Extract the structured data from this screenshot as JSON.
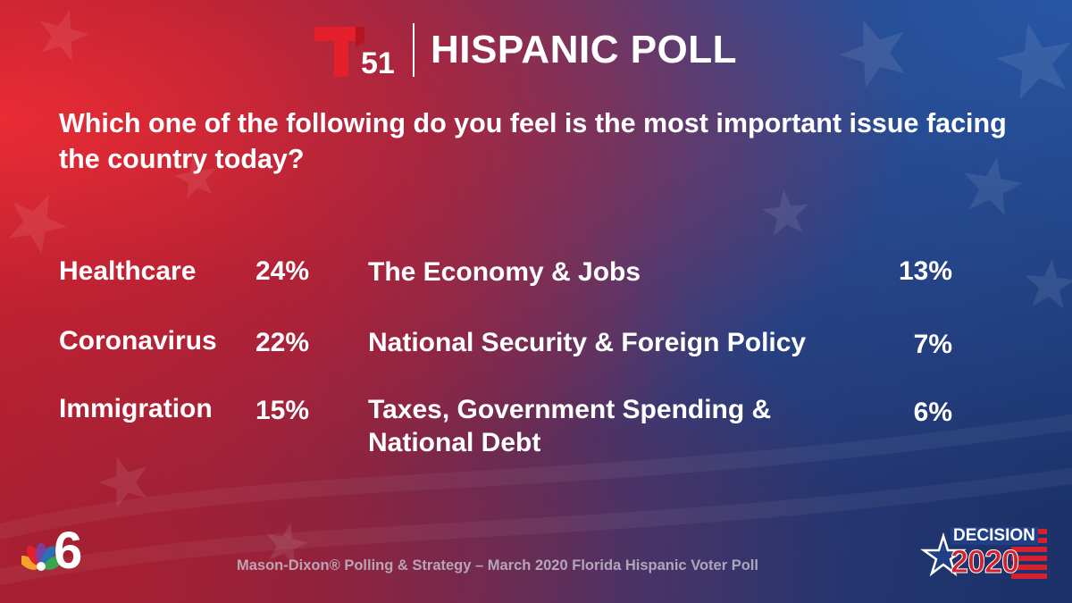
{
  "header": {
    "logo_number": "51",
    "title": "HISPANIC POLL"
  },
  "question": "Which one of the following do you feel is the most important issue facing the country today?",
  "results": [
    {
      "label": "Healthcare",
      "value": 24,
      "display": "24%"
    },
    {
      "label": "Coronavirus",
      "value": 22,
      "display": "22%"
    },
    {
      "label": "Immigration",
      "value": 15,
      "display": "15%"
    },
    {
      "label": "The Economy & Jobs",
      "value": 13,
      "display": "13%"
    },
    {
      "label": "National Security & Foreign Policy",
      "value": 7,
      "display": "7%"
    },
    {
      "label": "Taxes, Government Spending & National Debt",
      "value": 6,
      "display": "6%"
    }
  ],
  "footer": {
    "source": "Mason-Dixon® Polling & Strategy – March 2020 Florida Hispanic Voter Poll"
  },
  "branding": {
    "station_number": "6",
    "decision_word": "DECISION",
    "decision_year": "2020"
  },
  "colors": {
    "telemundo_red": "#e3202b",
    "text": "#ffffff",
    "footer_text": "#c9c4d3"
  },
  "icons": [
    "telemundo-logo-icon",
    "nbc-peacock-icon",
    "decision-2020-icon"
  ]
}
